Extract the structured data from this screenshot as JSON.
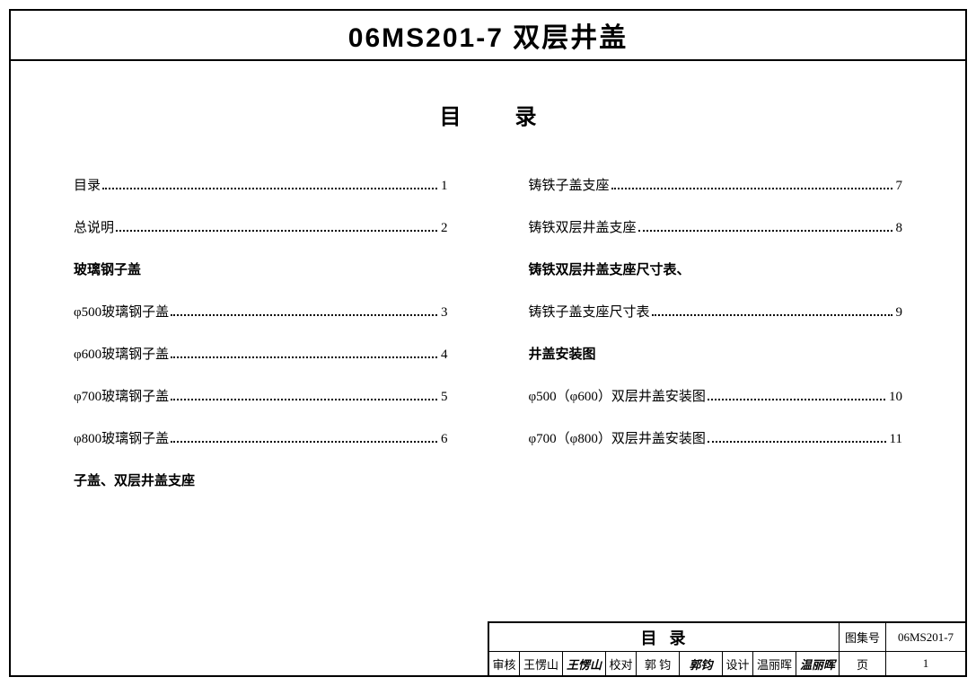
{
  "title": "06MS201-7 双层井盖",
  "toc_title": "目录",
  "left": [
    {
      "type": "item",
      "label": "目录",
      "page": "1"
    },
    {
      "type": "item",
      "label": "总说明",
      "page": "2"
    },
    {
      "type": "heading",
      "label": "玻璃钢子盖"
    },
    {
      "type": "item",
      "label": "φ500玻璃钢子盖",
      "page": "3"
    },
    {
      "type": "item",
      "label": "φ600玻璃钢子盖",
      "page": "4"
    },
    {
      "type": "item",
      "label": "φ700玻璃钢子盖",
      "page": "5"
    },
    {
      "type": "item",
      "label": "φ800玻璃钢子盖",
      "page": "6"
    },
    {
      "type": "heading",
      "label": "子盖、双层井盖支座"
    }
  ],
  "right": [
    {
      "type": "item",
      "label": "铸铁子盖支座",
      "page": "7"
    },
    {
      "type": "item",
      "label": "铸铁双层井盖支座",
      "page": "8"
    },
    {
      "type": "heading",
      "label": "铸铁双层井盖支座尺寸表、"
    },
    {
      "type": "item",
      "label": "铸铁子盖支座尺寸表",
      "page": "9"
    },
    {
      "type": "heading",
      "label": "井盖安装图"
    },
    {
      "type": "item",
      "label": "φ500（φ600）双层井盖安装图",
      "page": "10"
    },
    {
      "type": "item",
      "label": "φ700（φ800）双层井盖安装图",
      "page": "11"
    }
  ],
  "titleblock": {
    "mulu": "目录",
    "tujihao_label": "图集号",
    "tujihao_value": "06MS201-7",
    "shenhe_label": "审核",
    "shenhe_name": "王愣山",
    "shenhe_sig": "王愣山",
    "jiaodui_label": "校对",
    "jiaodui_name": "郭 钧",
    "jiaodui_sig": "郭钧",
    "sheji_label": "设计",
    "sheji_name": "温丽晖",
    "sheji_sig": "温丽晖",
    "page_label": "页",
    "page_value": "1"
  }
}
